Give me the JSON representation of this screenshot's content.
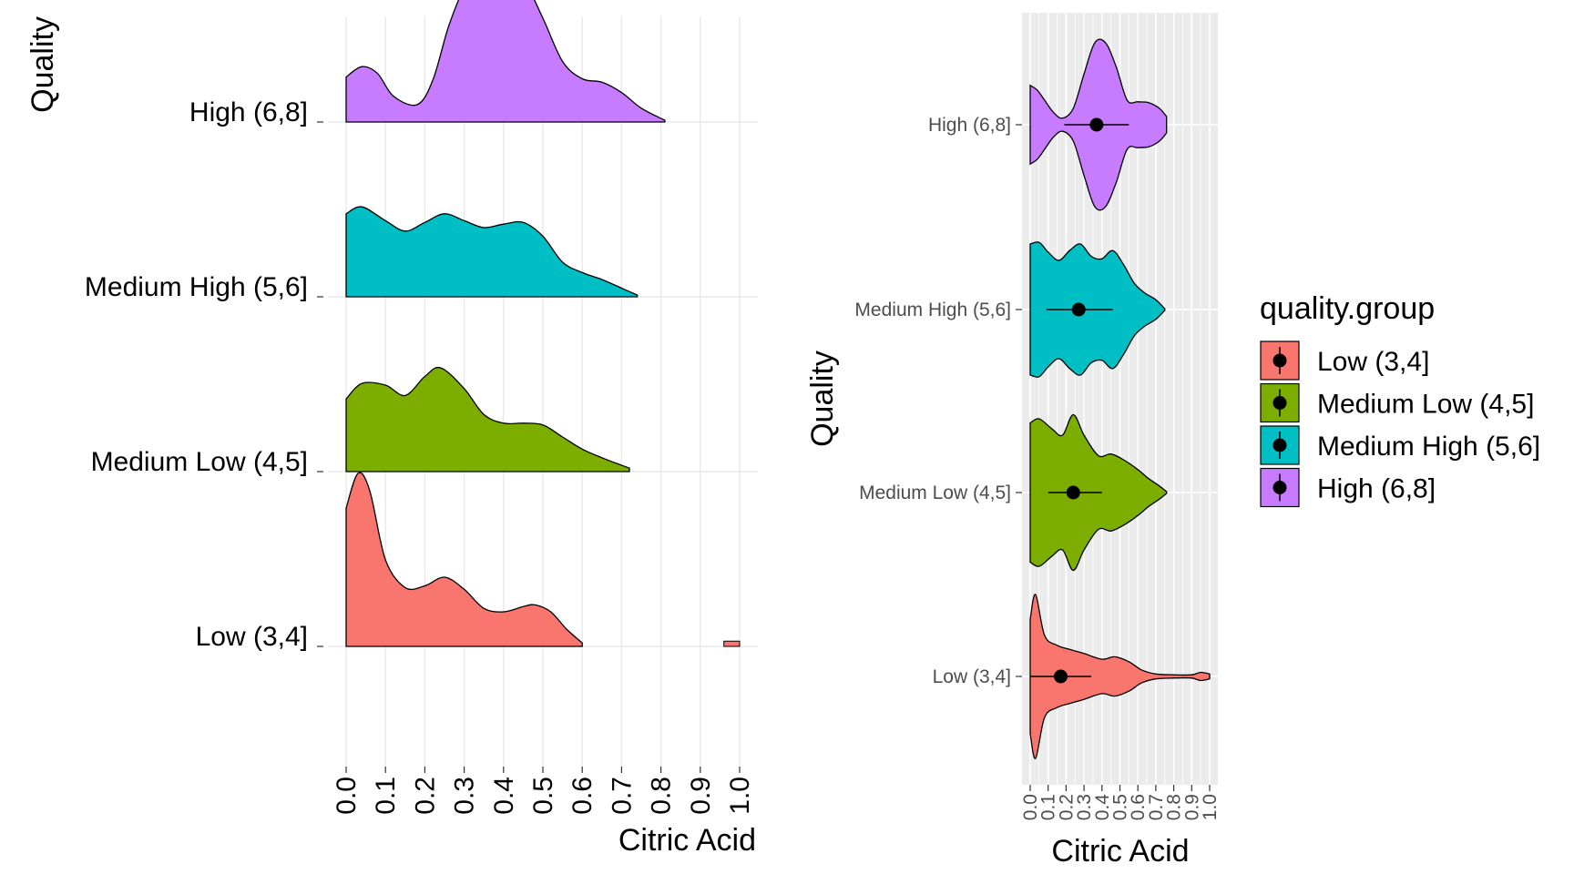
{
  "chart_data": [
    {
      "type": "ridgeline",
      "xlabel": "Citric Acid",
      "ylabel": "Quality",
      "xlim": [
        0,
        1.0
      ],
      "xticks": [
        "0.0",
        "0.1",
        "0.2",
        "0.3",
        "0.4",
        "0.5",
        "0.6",
        "0.7",
        "0.8",
        "0.9",
        "1.0"
      ],
      "series": [
        {
          "name": "Low (3,4]",
          "color": "#F8766D",
          "x": [
            0.0,
            0.03,
            0.06,
            0.1,
            0.15,
            0.2,
            0.25,
            0.3,
            0.35,
            0.4,
            0.45,
            0.48,
            0.52,
            0.56,
            0.6
          ],
          "density": [
            0.8,
            1.0,
            0.9,
            0.5,
            0.34,
            0.35,
            0.4,
            0.33,
            0.22,
            0.2,
            0.23,
            0.24,
            0.2,
            0.1,
            0.02
          ],
          "extra": {
            "x": [
              0.96,
              1.0
            ],
            "density": [
              0.03,
              0.03
            ]
          }
        },
        {
          "name": "Medium Low (4,5]",
          "color": "#7CAE00",
          "x": [
            0.0,
            0.04,
            0.1,
            0.15,
            0.2,
            0.24,
            0.3,
            0.35,
            0.4,
            0.45,
            0.5,
            0.55,
            0.6,
            0.65,
            0.72
          ],
          "density": [
            0.42,
            0.51,
            0.5,
            0.44,
            0.55,
            0.6,
            0.48,
            0.33,
            0.28,
            0.28,
            0.27,
            0.2,
            0.13,
            0.08,
            0.02
          ],
          "extra": null
        },
        {
          "name": "Medium High (5,6]",
          "color": "#00BFC4",
          "x": [
            0.0,
            0.04,
            0.1,
            0.15,
            0.2,
            0.25,
            0.3,
            0.35,
            0.4,
            0.45,
            0.5,
            0.55,
            0.6,
            0.65,
            0.7,
            0.74
          ],
          "density": [
            0.48,
            0.52,
            0.44,
            0.38,
            0.43,
            0.48,
            0.44,
            0.4,
            0.42,
            0.43,
            0.35,
            0.2,
            0.14,
            0.1,
            0.05,
            0.01
          ],
          "extra": null
        },
        {
          "name": "High (6,8]",
          "color": "#C77CFF",
          "x": [
            0.0,
            0.04,
            0.08,
            0.12,
            0.18,
            0.22,
            0.26,
            0.3,
            0.34,
            0.4,
            0.45,
            0.5,
            0.55,
            0.6,
            0.65,
            0.7,
            0.75,
            0.81
          ],
          "density": [
            0.26,
            0.32,
            0.28,
            0.15,
            0.1,
            0.24,
            0.55,
            0.77,
            0.85,
            0.87,
            0.82,
            0.6,
            0.35,
            0.25,
            0.23,
            0.17,
            0.08,
            0.01
          ],
          "extra": null
        }
      ]
    },
    {
      "type": "violin",
      "xlabel": "Citric Acid",
      "ylabel": "Quality",
      "xlim": [
        0,
        1.0
      ],
      "xticks": [
        "0.0",
        "0.1",
        "0.2",
        "0.3",
        "0.4",
        "0.5",
        "0.6",
        "0.7",
        "0.8",
        "0.9",
        "1.0"
      ],
      "series": [
        {
          "name": "Low (3,4]",
          "color": "#F8766D",
          "mean": 0.17,
          "sd_low": 0.17,
          "sd_high": 0.17,
          "x": [
            0.0,
            0.03,
            0.08,
            0.15,
            0.22,
            0.3,
            0.4,
            0.47,
            0.55,
            0.62,
            0.7,
            0.8,
            0.9,
            0.95,
            1.0
          ],
          "halfwidth": [
            0.7,
            1.0,
            0.5,
            0.38,
            0.33,
            0.28,
            0.21,
            0.24,
            0.18,
            0.08,
            0.03,
            0.02,
            0.02,
            0.05,
            0.03
          ]
        },
        {
          "name": "Medium Low (4,5]",
          "color": "#7CAE00",
          "mean": 0.24,
          "sd_low": 0.14,
          "sd_high": 0.16,
          "x": [
            0.0,
            0.05,
            0.12,
            0.18,
            0.24,
            0.3,
            0.38,
            0.45,
            0.52,
            0.6,
            0.66,
            0.72,
            0.76
          ],
          "halfwidth": [
            0.85,
            0.9,
            0.78,
            0.7,
            0.95,
            0.7,
            0.45,
            0.47,
            0.4,
            0.28,
            0.17,
            0.08,
            0.01
          ]
        },
        {
          "name": "Medium High (5,6]",
          "color": "#00BFC4",
          "mean": 0.27,
          "sd_low": 0.18,
          "sd_high": 0.19,
          "x": [
            0.0,
            0.05,
            0.1,
            0.16,
            0.22,
            0.28,
            0.34,
            0.4,
            0.46,
            0.52,
            0.58,
            0.64,
            0.7,
            0.75
          ],
          "halfwidth": [
            0.8,
            0.82,
            0.7,
            0.6,
            0.72,
            0.8,
            0.65,
            0.62,
            0.72,
            0.55,
            0.32,
            0.2,
            0.12,
            0.01
          ]
        },
        {
          "name": "High (6,8]",
          "color": "#C77CFF",
          "mean": 0.37,
          "sd_low": 0.18,
          "sd_high": 0.18,
          "x": [
            0.0,
            0.04,
            0.08,
            0.13,
            0.18,
            0.24,
            0.3,
            0.36,
            0.42,
            0.48,
            0.54,
            0.6,
            0.66,
            0.72,
            0.76
          ],
          "halfwidth": [
            0.48,
            0.42,
            0.3,
            0.15,
            0.08,
            0.2,
            0.62,
            1.0,
            1.0,
            0.7,
            0.3,
            0.28,
            0.27,
            0.2,
            0.1
          ]
        }
      ]
    }
  ],
  "legend": {
    "title": "quality.group",
    "items": [
      {
        "label": "Low (3,4]",
        "color": "#F8766D"
      },
      {
        "label": "Medium Low (4,5]",
        "color": "#7CAE00"
      },
      {
        "label": "Medium High (5,6]",
        "color": "#00BFC4"
      },
      {
        "label": "High (6,8]",
        "color": "#C77CFF"
      }
    ]
  }
}
